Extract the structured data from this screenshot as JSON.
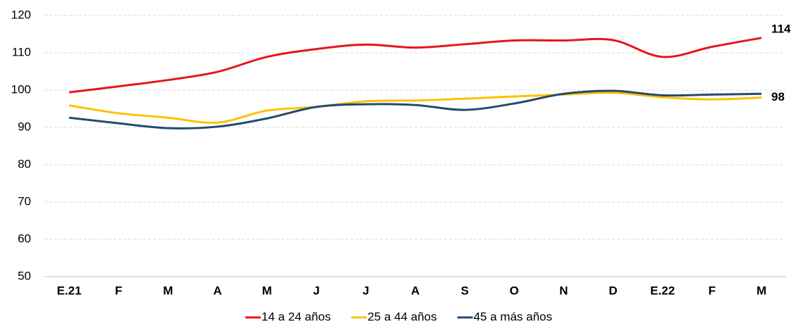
{
  "chart_data": {
    "type": "line",
    "categories": [
      "E.21",
      "F",
      "M",
      "A",
      "M",
      "J",
      "J",
      "A",
      "S",
      "O",
      "N",
      "D",
      "E.22",
      "F",
      "M"
    ],
    "series": [
      {
        "name": "14 a 24 años",
        "color": "#e8141c",
        "label_last": true,
        "values": [
          99.4,
          101,
          102.7,
          104.9,
          108.9,
          111,
          112.2,
          111.4,
          112.3,
          113.3,
          113.3,
          113.4,
          108.9,
          111.6,
          114
        ]
      },
      {
        "name": "25 a 44 años",
        "color": "#ffc000",
        "label_last": true,
        "values": [
          95.9,
          93.8,
          92.6,
          91.3,
          94.5,
          95.5,
          97,
          97.2,
          97.7,
          98.3,
          98.8,
          99.3,
          98.1,
          97.5,
          98
        ]
      },
      {
        "name": "45 a más años",
        "color": "#244a6e",
        "label_last": false,
        "values": [
          92.6,
          91.1,
          89.8,
          90.2,
          92.4,
          95.5,
          96.2,
          96,
          94.7,
          96.4,
          99,
          99.8,
          98.6,
          98.8,
          99
        ]
      }
    ],
    "ylim": [
      50,
      120
    ],
    "yticks": [
      50,
      60,
      70,
      80,
      90,
      100,
      110,
      120
    ],
    "grid": true,
    "legend": "bottom"
  }
}
